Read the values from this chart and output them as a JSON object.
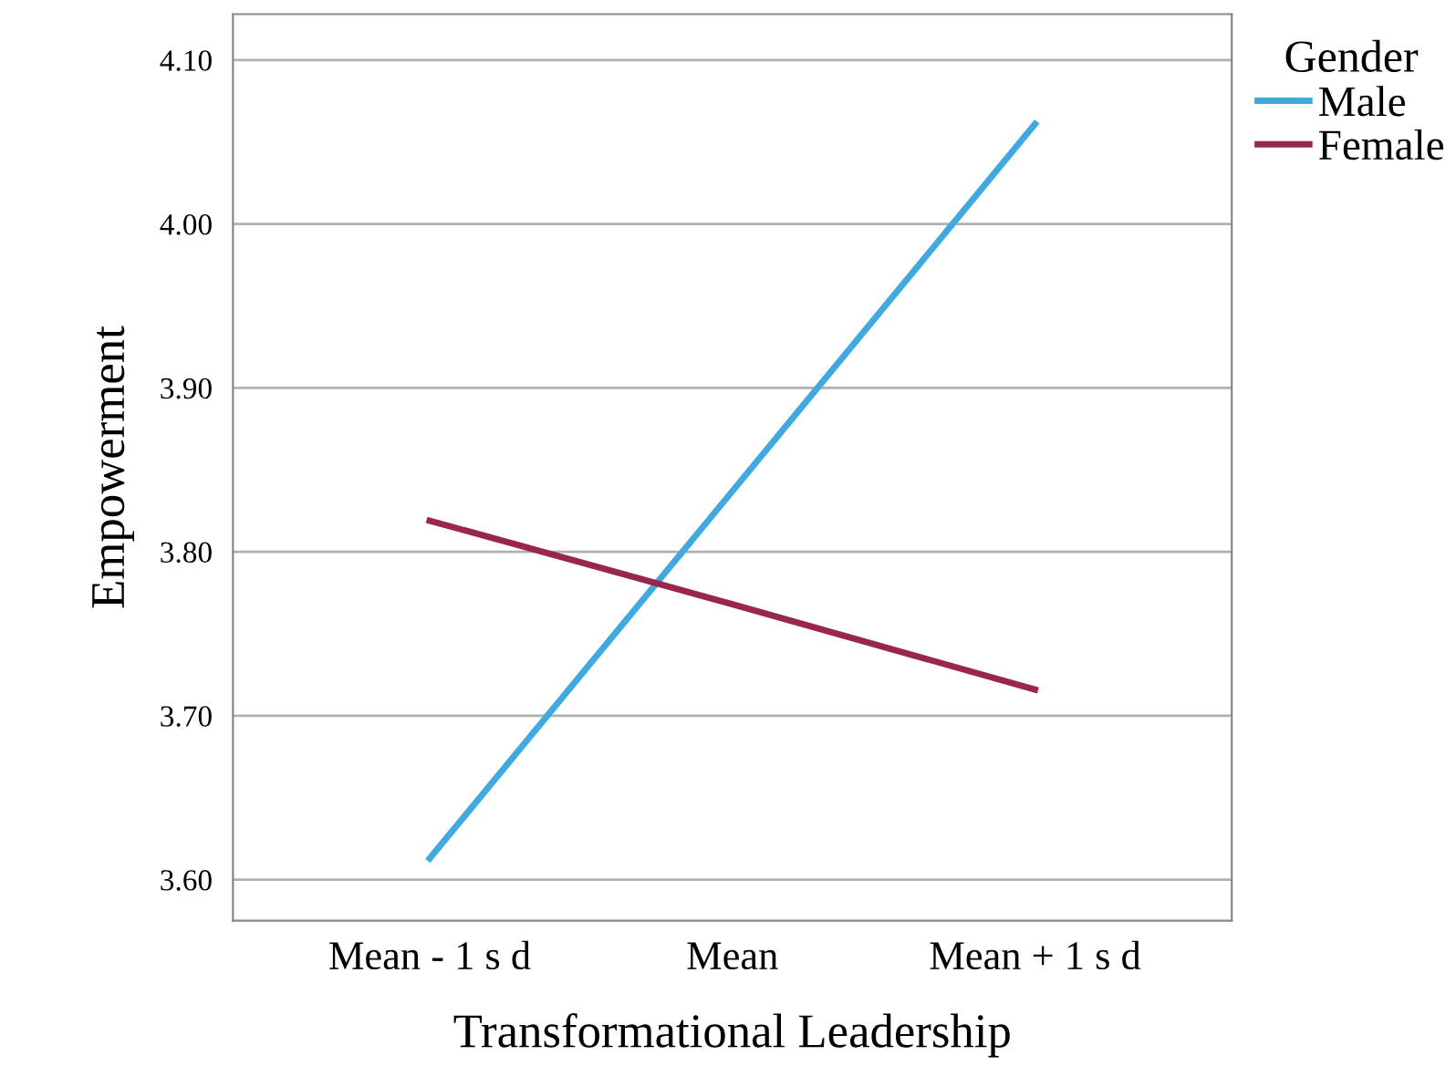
{
  "chart_data": {
    "type": "line",
    "xlabel": "Transformational Leadership",
    "ylabel": "Empowerment",
    "legend_title": "Gender",
    "categories": [
      "Mean - 1 s d",
      "Mean",
      "Mean + 1 s d"
    ],
    "series": [
      {
        "name": "Male",
        "color": "#3fa9e0",
        "values": [
          3.613,
          3.837,
          4.061
        ]
      },
      {
        "name": "Female",
        "color": "#98264f",
        "values": [
          3.819,
          3.768,
          3.716
        ]
      }
    ],
    "ylim": [
      3.575,
      4.128
    ],
    "yticks": [
      {
        "value": 3.6,
        "label": "3.60"
      },
      {
        "value": 3.7,
        "label": "3.70"
      },
      {
        "value": 3.8,
        "label": "3.80"
      },
      {
        "value": 3.9,
        "label": "3.90"
      },
      {
        "value": 4.0,
        "label": "4.00"
      },
      {
        "value": 4.1,
        "label": "4.10"
      }
    ],
    "grid": "y",
    "legend": "top right",
    "marker": "none",
    "line_style": "solid"
  }
}
